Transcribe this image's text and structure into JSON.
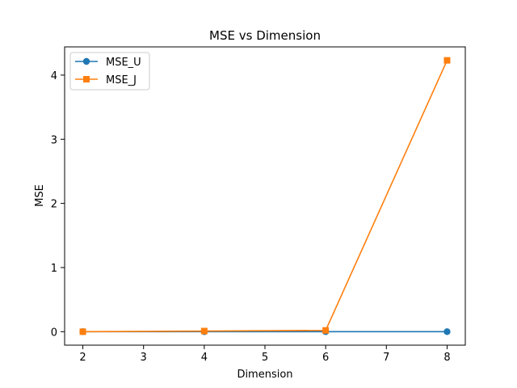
{
  "chart_data": {
    "type": "line",
    "title": "MSE vs Dimension",
    "xlabel": "Dimension",
    "ylabel": "MSE",
    "x": [
      2,
      4,
      6,
      8
    ],
    "xlim": [
      1.7,
      8.3
    ],
    "ylim": [
      -0.21,
      4.44
    ],
    "xticks": [
      2,
      3,
      4,
      5,
      6,
      7,
      8
    ],
    "yticks": [
      0,
      1,
      2,
      3,
      4
    ],
    "grid": false,
    "legend_position": "upper-left",
    "series": [
      {
        "name": "MSE_U",
        "values": [
          0.0,
          0.0,
          0.0,
          0.0
        ],
        "color": "#1f77b4",
        "marker": "circle"
      },
      {
        "name": "MSE_J",
        "values": [
          0.0,
          0.01,
          0.02,
          4.23
        ],
        "color": "#ff7f0e",
        "marker": "square"
      }
    ]
  }
}
